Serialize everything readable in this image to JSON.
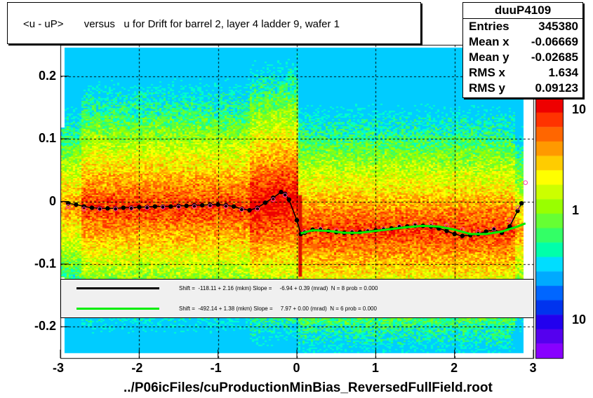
{
  "title": "<u - uP>       versus   u for Drift for barrel 2, layer 4 ladder 9, wafer 1",
  "stats": {
    "name": "duuP4109",
    "rows": [
      {
        "key": "Entries",
        "value": "345380"
      },
      {
        "key": "Mean x",
        "value": "-0.06669"
      },
      {
        "key": "Mean y",
        "value": "-0.02685"
      },
      {
        "key": "RMS x",
        "value": "1.634"
      },
      {
        "key": "RMS y",
        "value": "0.09123"
      }
    ]
  },
  "legend": {
    "entries": [
      {
        "color": "#000000",
        "text": "Shift =  -118.11 + 2.16 (mkm) Slope =     -6.94 + 0.39 (mrad)  N = 8 prob = 0.000"
      },
      {
        "color": "#00ee00",
        "text": "Shift =  -492.14 + 1.38 (mkm) Slope =     7.97 + 0.00 (mrad)  N = 6 prob = 0.000"
      }
    ]
  },
  "colors": {
    "black_series": "#000000",
    "green_series": "#00ee00",
    "open_markers": "#ff44aa"
  },
  "chart_data": {
    "type": "heatmap",
    "title": "<u - uP>       versus   u for Drift for barrel 2, layer 4 ladder 9, wafer 1",
    "xlabel": "../P06icFiles/cuProductionMinBias_ReversedFullField.root",
    "ylabel": "",
    "xlim": [
      -3,
      3
    ],
    "ylim": [
      -0.25,
      0.25
    ],
    "x_ticks": [
      "-3",
      "-2",
      "-1",
      "0",
      "1",
      "2",
      "3"
    ],
    "y_ticks": [
      "0.2",
      "0.1",
      "0",
      "-0.1",
      "-0.2"
    ],
    "x_tick_values": [
      -3,
      -2,
      -1,
      0,
      1,
      2,
      3
    ],
    "y_tick_values": [
      0.2,
      0.1,
      0,
      -0.1,
      -0.2
    ],
    "z_scale": "log",
    "z_ticks": [
      "10",
      "1",
      "10"
    ],
    "grid": true,
    "series": [
      {
        "marker": "filled-circle",
        "color": "#000000",
        "x": [
          -2.9,
          -2.8,
          -2.7,
          -2.6,
          -2.5,
          -2.4,
          -2.3,
          -2.2,
          -2.1,
          -2.0,
          -1.9,
          -1.8,
          -1.7,
          -1.6,
          -1.5,
          -1.4,
          -1.3,
          -1.2,
          -1.1,
          -1.0,
          -0.9,
          -0.8,
          -0.7,
          -0.6,
          -0.5,
          -0.4,
          -0.3,
          -0.2,
          -0.15,
          -0.1,
          0.0,
          0.05,
          0.1,
          0.2,
          0.3,
          0.4,
          0.5,
          0.6,
          0.7,
          0.8,
          0.9,
          1.0,
          1.1,
          1.2,
          1.3,
          1.4,
          1.5,
          1.6,
          1.7,
          1.8,
          1.9,
          2.0,
          2.1,
          2.2,
          2.3,
          2.4,
          2.5,
          2.6,
          2.7,
          2.8,
          2.85
        ],
        "y": [
          -0.003,
          -0.005,
          -0.008,
          -0.01,
          -0.011,
          -0.011,
          -0.011,
          -0.01,
          -0.01,
          -0.009,
          -0.009,
          -0.008,
          -0.008,
          -0.008,
          -0.007,
          -0.007,
          -0.006,
          -0.006,
          -0.005,
          -0.005,
          -0.006,
          -0.008,
          -0.012,
          -0.014,
          -0.01,
          -0.002,
          0.006,
          0.015,
          0.012,
          0.003,
          -0.03,
          -0.052,
          -0.05,
          -0.045,
          -0.045,
          -0.047,
          -0.049,
          -0.05,
          -0.05,
          -0.049,
          -0.047,
          -0.046,
          -0.044,
          -0.043,
          -0.041,
          -0.04,
          -0.039,
          -0.039,
          -0.04,
          -0.043,
          -0.047,
          -0.052,
          -0.055,
          -0.054,
          -0.052,
          -0.048,
          -0.045,
          -0.05,
          -0.04,
          -0.015,
          -0.003
        ]
      },
      {
        "marker": "open-circle",
        "color": "#ff44aa",
        "x": [
          -2.9,
          -2.7,
          -2.5,
          -2.3,
          -2.1,
          -1.9,
          -1.7,
          -1.5,
          -1.3,
          -1.1,
          -0.9,
          -0.7,
          -0.5,
          -0.3,
          -0.15,
          0.1,
          0.3,
          0.5,
          0.7,
          0.9,
          1.1,
          1.3,
          1.5,
          1.7,
          1.9,
          2.1,
          2.3,
          2.5,
          2.7,
          2.8,
          2.9
        ],
        "y": [
          -0.008,
          -0.012,
          -0.012,
          -0.012,
          -0.011,
          -0.01,
          -0.009,
          -0.009,
          -0.008,
          -0.007,
          -0.008,
          -0.013,
          -0.012,
          0.003,
          0.01,
          -0.048,
          -0.044,
          -0.046,
          -0.048,
          -0.047,
          -0.044,
          -0.04,
          -0.036,
          -0.035,
          -0.038,
          -0.045,
          -0.048,
          -0.044,
          -0.03,
          -0.01,
          0.03
        ]
      },
      {
        "marker": "line",
        "color": "#00ee00",
        "x": [
          0.05,
          0.2,
          0.4,
          0.6,
          0.8,
          1.0,
          1.2,
          1.4,
          1.6,
          1.8,
          2.0,
          2.2,
          2.4,
          2.6,
          2.8,
          2.9
        ],
        "y": [
          -0.051,
          -0.046,
          -0.047,
          -0.05,
          -0.05,
          -0.047,
          -0.044,
          -0.041,
          -0.039,
          -0.04,
          -0.045,
          -0.052,
          -0.052,
          -0.048,
          -0.04,
          -0.035
        ]
      }
    ]
  }
}
